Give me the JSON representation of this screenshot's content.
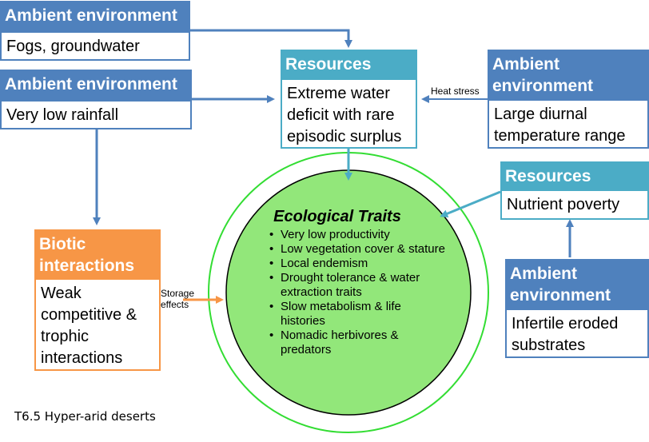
{
  "nodes": {
    "fogs": {
      "header": "Ambient environment",
      "body": "Fogs, groundwater"
    },
    "rainfall": {
      "header": "Ambient environment",
      "body": "Very low rainfall"
    },
    "resources_water": {
      "header": "Resources",
      "body": "Extreme water deficit with rare episodic surplus"
    },
    "temperature": {
      "header": "Ambient environment",
      "body": "Large diurnal temperature range"
    },
    "resources_nutrient": {
      "header": "Resources",
      "body": "Nutrient poverty"
    },
    "biotic": {
      "header": "Biotic interactions",
      "body": "Weak competitive & trophic interactions"
    },
    "substrates": {
      "header": "Ambient environment",
      "body": "Infertile eroded substrates"
    }
  },
  "edge_labels": {
    "heat_stress": "Heat stress",
    "storage_effects": "Storage effects"
  },
  "traits": {
    "title": "Ecological Traits",
    "items": [
      "Very low productivity",
      "Low vegetation cover & stature",
      "Local endemism",
      "Drought tolerance & water extraction traits",
      "Slow metabolism & life histories",
      "Nomadic herbivores & predators"
    ]
  },
  "caption": "T6.5 Hyper-arid deserts",
  "colors": {
    "ambient": "#4F81BD",
    "resources": "#4BACC6",
    "biotic": "#F79646",
    "traits_fill": "#92E77A",
    "circle_outline": "#33DD33"
  }
}
